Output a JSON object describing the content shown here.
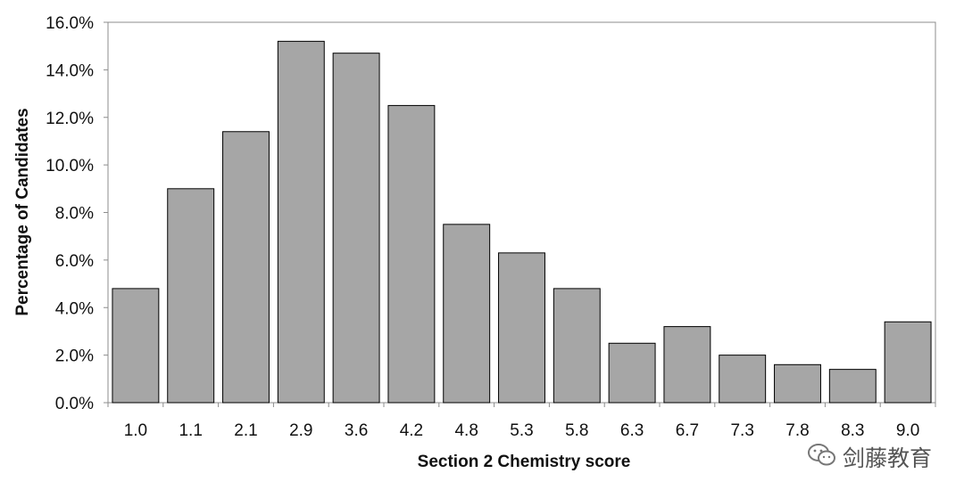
{
  "chart_data": {
    "type": "bar",
    "title": "",
    "xlabel": "Section 2 Chemistry score",
    "ylabel": "Percentage of Candidates",
    "categories": [
      "1.0",
      "1.1",
      "2.1",
      "2.9",
      "3.6",
      "4.2",
      "4.8",
      "5.3",
      "5.8",
      "6.3",
      "6.7",
      "7.3",
      "7.8",
      "8.3",
      "9.0"
    ],
    "values": [
      4.8,
      9.0,
      11.4,
      15.2,
      14.7,
      12.5,
      7.5,
      6.3,
      4.8,
      2.5,
      3.2,
      2.0,
      1.6,
      1.4,
      3.4
    ],
    "ylim": [
      0,
      16
    ],
    "yticks": [
      "0.0%",
      "2.0%",
      "4.0%",
      "6.0%",
      "8.0%",
      "10.0%",
      "12.0%",
      "14.0%",
      "16.0%"
    ],
    "grid": false,
    "legend": "none",
    "bar_color": "#a6a6a6",
    "bar_edge_color": "#000000"
  },
  "watermark": {
    "text": "剑藤教育",
    "icon": "wechat-icon"
  }
}
